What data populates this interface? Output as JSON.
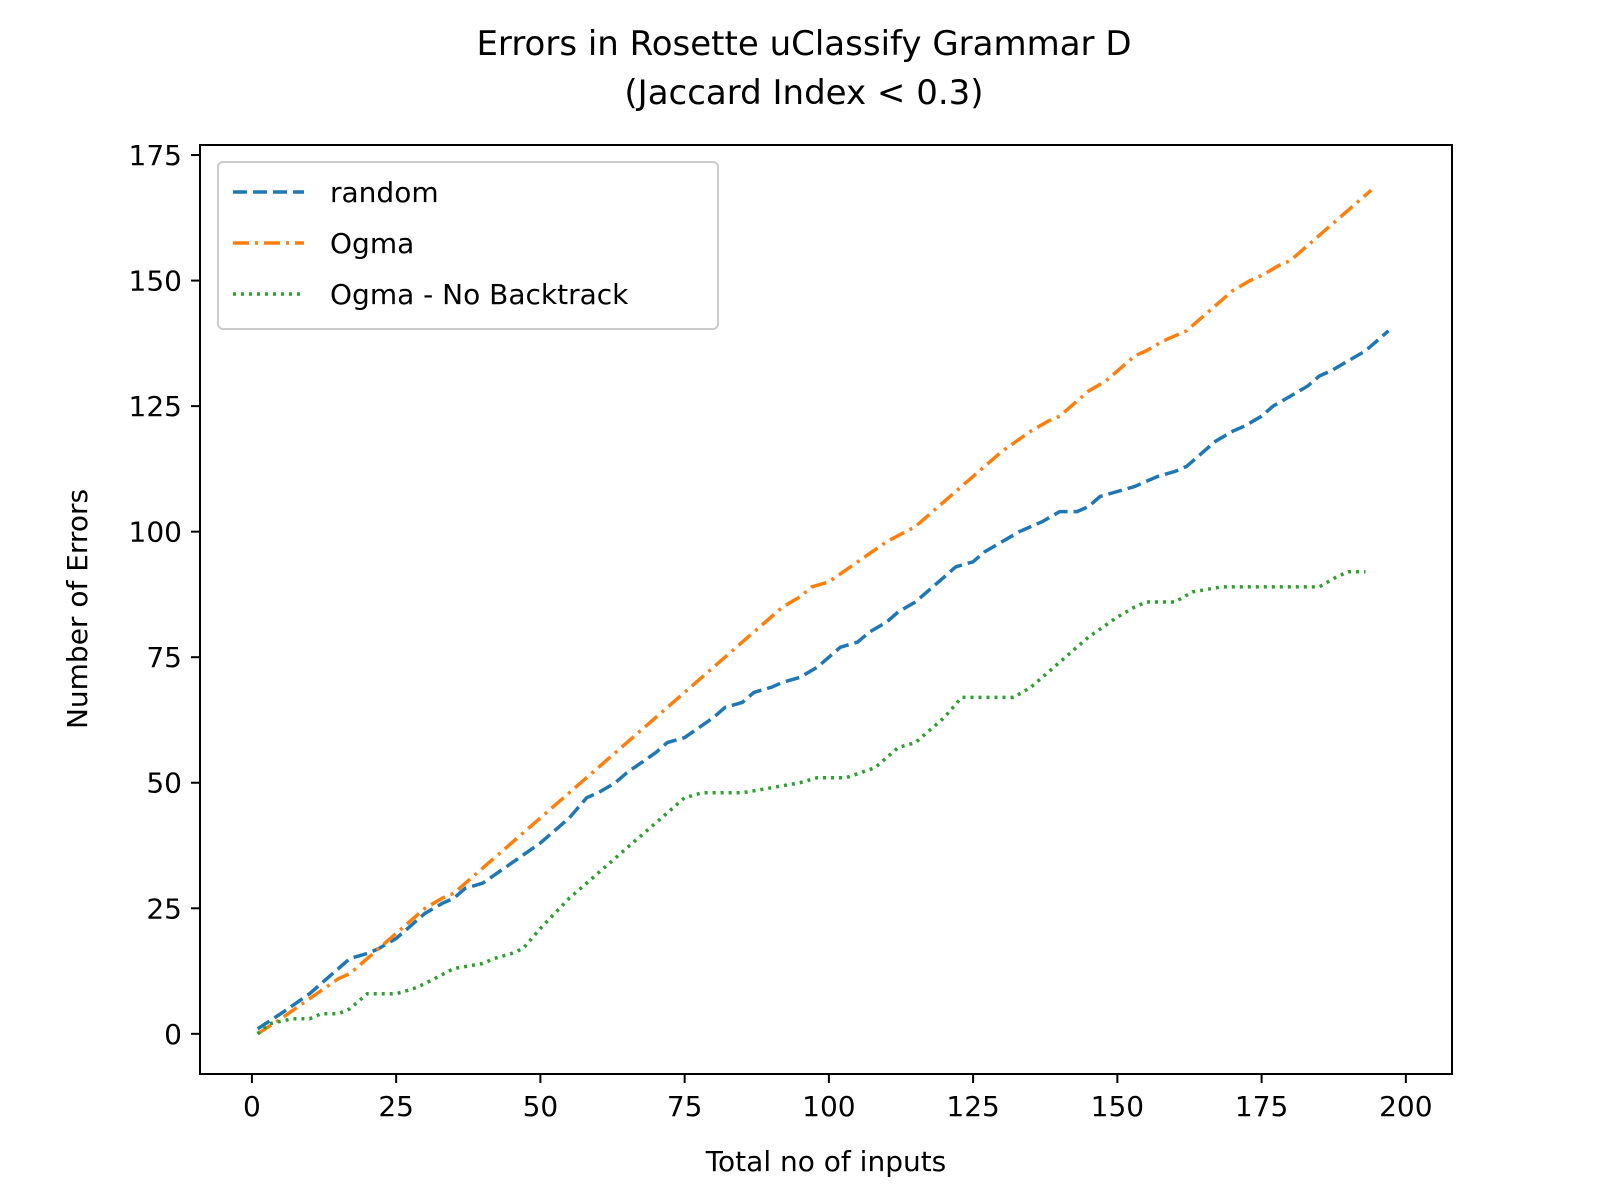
{
  "chart_data": {
    "type": "line",
    "title": "Errors in Rosette uClassify Grammar D",
    "subtitle": "(Jaccard Index < 0.3)",
    "xlabel": "Total no of inputs",
    "ylabel": "Number of Errors",
    "xlim": [
      -9,
      208
    ],
    "ylim": [
      -8,
      177
    ],
    "xticks": [
      0,
      25,
      50,
      75,
      100,
      125,
      150,
      175,
      200
    ],
    "yticks": [
      0,
      25,
      50,
      75,
      100,
      125,
      150,
      175
    ],
    "grid": false,
    "legend_position": "top-left",
    "series": [
      {
        "name": "random",
        "color": "#1f77b4",
        "style": "dashed",
        "points": [
          [
            1,
            1
          ],
          [
            5,
            4
          ],
          [
            10,
            8
          ],
          [
            15,
            13
          ],
          [
            17,
            15
          ],
          [
            20,
            16
          ],
          [
            22,
            17
          ],
          [
            25,
            19
          ],
          [
            27,
            21
          ],
          [
            30,
            24
          ],
          [
            33,
            26
          ],
          [
            35,
            27
          ],
          [
            37,
            29
          ],
          [
            40,
            30
          ],
          [
            45,
            34
          ],
          [
            50,
            38
          ],
          [
            55,
            43
          ],
          [
            58,
            47
          ],
          [
            60,
            48
          ],
          [
            63,
            50
          ],
          [
            65,
            52
          ],
          [
            70,
            56
          ],
          [
            72,
            58
          ],
          [
            75,
            59
          ],
          [
            80,
            63
          ],
          [
            82,
            65
          ],
          [
            85,
            66
          ],
          [
            87,
            68
          ],
          [
            90,
            69
          ],
          [
            92,
            70
          ],
          [
            95,
            71
          ],
          [
            98,
            73
          ],
          [
            100,
            75
          ],
          [
            102,
            77
          ],
          [
            105,
            78
          ],
          [
            107,
            80
          ],
          [
            110,
            82
          ],
          [
            112,
            84
          ],
          [
            115,
            86
          ],
          [
            117,
            88
          ],
          [
            120,
            91
          ],
          [
            122,
            93
          ],
          [
            125,
            94
          ],
          [
            127,
            96
          ],
          [
            130,
            98
          ],
          [
            133,
            100
          ],
          [
            135,
            101
          ],
          [
            137,
            102
          ],
          [
            140,
            104
          ],
          [
            143,
            104
          ],
          [
            145,
            105
          ],
          [
            147,
            107
          ],
          [
            150,
            108
          ],
          [
            153,
            109
          ],
          [
            155,
            110
          ],
          [
            157,
            111
          ],
          [
            160,
            112
          ],
          [
            162,
            113
          ],
          [
            165,
            116
          ],
          [
            167,
            118
          ],
          [
            170,
            120
          ],
          [
            172,
            121
          ],
          [
            175,
            123
          ],
          [
            177,
            125
          ],
          [
            180,
            127
          ],
          [
            183,
            129
          ],
          [
            185,
            131
          ],
          [
            187,
            132
          ],
          [
            190,
            134
          ],
          [
            193,
            136
          ],
          [
            195,
            138
          ],
          [
            197,
            140
          ]
        ]
      },
      {
        "name": "Ogma",
        "color": "#ff7f0e",
        "style": "dashdot",
        "points": [
          [
            1,
            0
          ],
          [
            5,
            3
          ],
          [
            10,
            7
          ],
          [
            15,
            11
          ],
          [
            17,
            12
          ],
          [
            20,
            15
          ],
          [
            25,
            20
          ],
          [
            30,
            25
          ],
          [
            33,
            27
          ],
          [
            35,
            28
          ],
          [
            40,
            33
          ],
          [
            45,
            38
          ],
          [
            50,
            43
          ],
          [
            55,
            48
          ],
          [
            60,
            53
          ],
          [
            65,
            58
          ],
          [
            70,
            63
          ],
          [
            75,
            68
          ],
          [
            80,
            73
          ],
          [
            85,
            78
          ],
          [
            90,
            83
          ],
          [
            92,
            85
          ],
          [
            95,
            87
          ],
          [
            97,
            89
          ],
          [
            100,
            90
          ],
          [
            105,
            94
          ],
          [
            110,
            98
          ],
          [
            115,
            101
          ],
          [
            120,
            106
          ],
          [
            125,
            111
          ],
          [
            130,
            116
          ],
          [
            135,
            120
          ],
          [
            138,
            122
          ],
          [
            140,
            123
          ],
          [
            143,
            126
          ],
          [
            145,
            128
          ],
          [
            148,
            130
          ],
          [
            150,
            132
          ],
          [
            153,
            135
          ],
          [
            155,
            136
          ],
          [
            158,
            138
          ],
          [
            160,
            139
          ],
          [
            162,
            140
          ],
          [
            165,
            143
          ],
          [
            168,
            146
          ],
          [
            170,
            148
          ],
          [
            173,
            150
          ],
          [
            175,
            151
          ],
          [
            178,
            153
          ],
          [
            180,
            154
          ],
          [
            183,
            157
          ],
          [
            185,
            159
          ],
          [
            188,
            162
          ],
          [
            190,
            164
          ],
          [
            193,
            167
          ],
          [
            194,
            168
          ]
        ]
      },
      {
        "name": "Ogma - No Backtrack",
        "color": "#2ca02c",
        "style": "dotted",
        "points": [
          [
            1,
            0
          ],
          [
            3,
            2
          ],
          [
            7,
            3
          ],
          [
            10,
            3
          ],
          [
            12,
            4
          ],
          [
            15,
            4
          ],
          [
            17,
            5
          ],
          [
            20,
            8
          ],
          [
            25,
            8
          ],
          [
            28,
            9
          ],
          [
            30,
            10
          ],
          [
            35,
            13
          ],
          [
            40,
            14
          ],
          [
            42,
            15
          ],
          [
            45,
            16
          ],
          [
            47,
            17
          ],
          [
            50,
            21
          ],
          [
            55,
            27
          ],
          [
            60,
            32
          ],
          [
            65,
            37
          ],
          [
            70,
            42
          ],
          [
            75,
            47
          ],
          [
            78,
            48
          ],
          [
            85,
            48
          ],
          [
            90,
            49
          ],
          [
            95,
            50
          ],
          [
            98,
            51
          ],
          [
            103,
            51
          ],
          [
            108,
            53
          ],
          [
            112,
            57
          ],
          [
            115,
            58
          ],
          [
            120,
            63
          ],
          [
            123,
            67
          ],
          [
            126,
            67
          ],
          [
            132,
            67
          ],
          [
            135,
            69
          ],
          [
            140,
            74
          ],
          [
            145,
            79
          ],
          [
            150,
            83
          ],
          [
            153,
            85
          ],
          [
            155,
            86
          ],
          [
            160,
            86
          ],
          [
            163,
            88
          ],
          [
            168,
            89
          ],
          [
            178,
            89
          ],
          [
            185,
            89
          ],
          [
            188,
            91
          ],
          [
            190,
            92
          ],
          [
            193,
            92
          ]
        ]
      }
    ]
  }
}
